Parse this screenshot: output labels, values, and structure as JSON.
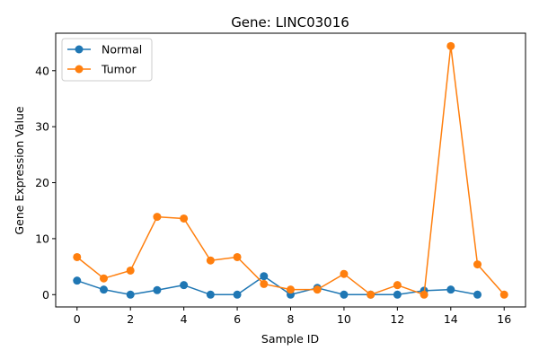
{
  "chart_data": {
    "type": "line",
    "title": "Gene: LINC03016",
    "xlabel": "Sample ID",
    "ylabel": "Gene Expression Value",
    "xlim": [
      -0.8,
      16.8
    ],
    "ylim": [
      -2.2,
      46.7
    ],
    "xticks": [
      0,
      2,
      4,
      6,
      8,
      10,
      12,
      14,
      16
    ],
    "yticks": [
      0,
      10,
      20,
      30,
      40
    ],
    "legend_position": "upper-left",
    "series": [
      {
        "name": "Normal",
        "color": "#1f77b4",
        "x": [
          0,
          1,
          2,
          3,
          4,
          5,
          6,
          7,
          8,
          9,
          10,
          11,
          12,
          13,
          14,
          15
        ],
        "y": [
          2.5,
          0.9,
          0.0,
          0.8,
          1.7,
          0.0,
          0.0,
          3.3,
          0.0,
          1.2,
          0.0,
          0.0,
          0.0,
          0.7,
          0.9,
          0.0
        ]
      },
      {
        "name": "Tumor",
        "color": "#ff7f0e",
        "x": [
          0,
          1,
          2,
          3,
          4,
          5,
          6,
          7,
          8,
          9,
          10,
          11,
          12,
          13,
          14,
          15,
          16
        ],
        "y": [
          6.7,
          2.9,
          4.3,
          13.9,
          13.6,
          6.1,
          6.7,
          1.9,
          0.9,
          0.9,
          3.7,
          0.0,
          1.7,
          0.0,
          44.4,
          5.4,
          0.0
        ]
      }
    ]
  }
}
